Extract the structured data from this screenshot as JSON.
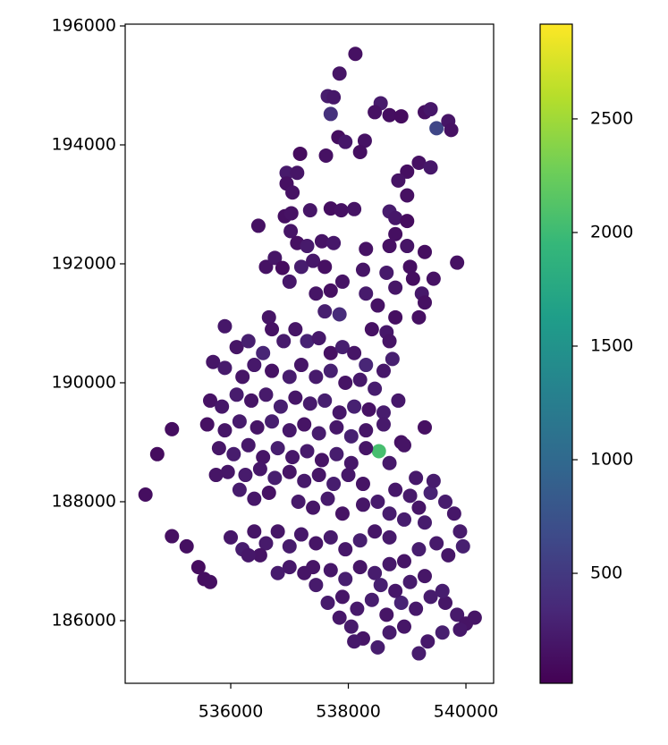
{
  "chart_data": {
    "type": "scatter",
    "colormap": "viridis",
    "marker_size": 8,
    "xlim": [
      534205,
      540471
    ],
    "ylim": [
      184947,
      196030
    ],
    "xticks": [
      536000,
      538000,
      540000
    ],
    "yticks": [
      186000,
      188000,
      190000,
      192000,
      194000,
      196000
    ],
    "clim": [
      16,
      2917
    ],
    "cticks": [
      500,
      1000,
      1500,
      2000,
      2500
    ],
    "x": [
      538120,
      537850,
      537650,
      537750,
      537700,
      538550,
      538450,
      538700,
      538900,
      539300,
      539400,
      539500,
      539700,
      539750,
      537830,
      537950,
      538280,
      538200,
      537180,
      537620,
      536950,
      537130,
      536950,
      537050,
      539000,
      539200,
      539400,
      538850,
      539000,
      537350,
      537700,
      537880,
      538100,
      538700,
      538800,
      536920,
      537030,
      539000,
      536470,
      537020,
      537130,
      537300,
      537550,
      537750,
      538300,
      538800,
      539000,
      538700,
      539300,
      536600,
      536750,
      536880,
      537200,
      537400,
      537600,
      538250,
      538650,
      539050,
      539100,
      539450,
      539850,
      537000,
      537450,
      537700,
      537900,
      538300,
      538500,
      538800,
      539250,
      539300,
      538800,
      536650,
      537600,
      537850,
      538650,
      538400,
      538700,
      539200,
      535000,
      534750,
      534550,
      535000,
      535250,
      535450,
      535550,
      535650,
      538520,
      535900,
      536100,
      536300,
      536550,
      536700,
      536900,
      537100,
      537300,
      537500,
      537700,
      537900,
      538100,
      538300,
      538600,
      538750,
      535700,
      535900,
      536200,
      536400,
      536700,
      537000,
      537200,
      537450,
      537700,
      537950,
      538200,
      538450,
      535650,
      535850,
      536100,
      536350,
      536600,
      536850,
      537100,
      537350,
      537600,
      537850,
      538100,
      538350,
      538600,
      538850,
      535600,
      535900,
      536150,
      536450,
      536700,
      537000,
      537250,
      537500,
      537800,
      538050,
      538300,
      538600,
      538900,
      539300,
      535800,
      536050,
      536300,
      536550,
      536800,
      537050,
      537300,
      537550,
      537800,
      538050,
      538300,
      538700,
      538950,
      535950,
      536250,
      536500,
      536750,
      537000,
      537250,
      537500,
      537750,
      538000,
      538250,
      535750,
      536150,
      536400,
      536650,
      537150,
      537400,
      537650,
      537900,
      536000,
      536200,
      536400,
      536600,
      536800,
      537000,
      537200,
      537450,
      537700,
      537950,
      538200,
      538450,
      538700,
      538950,
      539200,
      539400,
      539650,
      539800,
      539900,
      539950,
      539700,
      539500,
      539200,
      538950,
      538700,
      538450,
      538200,
      537950,
      537700,
      537450,
      537250,
      537000,
      536800,
      536500,
      536300,
      537650,
      537900,
      538150,
      538400,
      538650,
      538900,
      539150,
      539400,
      539650,
      539850,
      540000,
      539900,
      540150,
      539600,
      539350,
      539200,
      538950,
      538700,
      538500,
      538250,
      538050,
      537850,
      538100,
      539600,
      539300,
      539050,
      538800,
      538550,
      537400,
      539050,
      539300,
      538800,
      538500,
      538250,
      538700,
      539150,
      539450
    ],
    "values": [
      195530,
      195200,
      194820,
      194800,
      194520,
      194700,
      194550,
      194500,
      194480,
      194550,
      194600,
      194280,
      194400,
      194250,
      194130,
      194050,
      194070,
      193880,
      193850,
      193820,
      193530,
      193530,
      193350,
      193200,
      193550,
      193700,
      193620,
      193400,
      193150,
      192900,
      192930,
      192900,
      192920,
      192880,
      192770,
      192800,
      192850,
      192720,
      192640,
      192550,
      192350,
      192300,
      192380,
      192350,
      192250,
      192500,
      192300,
      192300,
      192200,
      191950,
      192100,
      191930,
      191950,
      192050,
      191950,
      191900,
      191850,
      191950,
      191750,
      191750,
      192020,
      191700,
      191500,
      191550,
      191700,
      191500,
      191300,
      191600,
      191500,
      191350,
      191100,
      191100,
      191200,
      191150,
      190850,
      190900,
      190700,
      191100,
      189220,
      188800,
      188120,
      187420,
      187250,
      186900,
      186700,
      186650,
      188850,
      190950,
      190600,
      190700,
      190500,
      190900,
      190700,
      190900,
      190700,
      190750,
      190500,
      190600,
      190500,
      190300,
      190200,
      190400,
      190350,
      190250,
      190100,
      190300,
      190200,
      190100,
      190300,
      190100,
      190200,
      190000,
      190050,
      189900,
      189700,
      189600,
      189800,
      189700,
      189800,
      189600,
      189750,
      189650,
      189700,
      189500,
      189600,
      189550,
      189500,
      189700,
      189300,
      189200,
      189350,
      189250,
      189350,
      189200,
      189300,
      189150,
      189250,
      189100,
      189200,
      189300,
      189000,
      189250,
      188900,
      188800,
      188950,
      188750,
      188900,
      188750,
      188850,
      188700,
      188800,
      188650,
      188900,
      188650,
      188950,
      188500,
      188450,
      188550,
      188400,
      188500,
      188350,
      188450,
      188300,
      188450,
      188300,
      188450,
      188200,
      188050,
      188150,
      188000,
      187900,
      188050,
      187800,
      187400,
      187200,
      187500,
      187300,
      187500,
      187250,
      187450,
      187300,
      187400,
      187200,
      187350,
      187500,
      187400,
      187700,
      187900,
      188150,
      188000,
      187800,
      187500,
      187250,
      187100,
      187300,
      187200,
      187000,
      186950,
      186800,
      186900,
      186700,
      186850,
      186600,
      186800,
      186900,
      186800,
      187100,
      187100,
      186300,
      186400,
      186200,
      186350,
      186100,
      186300,
      186200,
      186400,
      186300,
      186100,
      185950,
      185850,
      186050,
      185800,
      185650,
      185450,
      185900,
      185800,
      185550,
      185700,
      185900,
      186050,
      185650,
      186500,
      186750,
      186650,
      186500,
      186600,
      186900,
      188100,
      187650,
      188200,
      188000,
      187950,
      187800,
      188400,
      188350
    ],
    "color_values": [
      150,
      180,
      240,
      200,
      420,
      230,
      150,
      120,
      110,
      140,
      200,
      620,
      180,
      150,
      120,
      200,
      160,
      130,
      110,
      150,
      220,
      180,
      140,
      160,
      130,
      150,
      200,
      170,
      140,
      190,
      120,
      150,
      170,
      240,
      200,
      130,
      160,
      110,
      150,
      180,
      140,
      220,
      170,
      200,
      160,
      130,
      180,
      150,
      120,
      160,
      190,
      110,
      250,
      200,
      140,
      180,
      220,
      130,
      120,
      160,
      150,
      200,
      180,
      140,
      170,
      230,
      160,
      190,
      210,
      140,
      130,
      180,
      260,
      380,
      200,
      150,
      170,
      140,
      120,
      110,
      120,
      140,
      130,
      110,
      120,
      130,
      2050,
      200,
      180,
      260,
      310,
      160,
      230,
      180,
      290,
      210,
      150,
      260,
      180,
      320,
      200,
      270,
      190,
      230,
      180,
      210,
      160,
      250,
      190,
      230,
      280,
      170,
      210,
      250,
      160,
      200,
      240,
      180,
      220,
      270,
      190,
      230,
      260,
      200,
      280,
      160,
      240,
      210,
      150,
      190,
      230,
      180,
      260,
      210,
      170,
      240,
      200,
      280,
      190,
      220,
      150,
      140,
      190,
      240,
      210,
      180,
      260,
      200,
      230,
      170,
      250,
      200,
      180,
      210,
      170,
      190,
      230,
      200,
      260,
      180,
      220,
      190,
      250,
      200,
      170,
      180,
      240,
      200,
      160,
      220,
      190,
      230,
      170,
      200,
      250,
      180,
      220,
      190,
      240,
      210,
      180,
      230,
      200,
      260,
      190,
      220,
      250,
      180,
      300,
      240,
      200,
      230,
      270,
      190,
      220,
      250,
      180,
      210,
      240,
      190,
      260,
      200,
      230,
      180,
      210,
      240,
      170,
      200,
      230,
      190,
      220,
      250,
      180,
      300,
      210,
      240,
      190,
      220,
      170,
      200,
      180,
      260,
      210,
      240,
      190,
      230,
      250,
      180,
      220,
      200,
      210,
      250,
      190,
      230,
      200,
      270,
      180,
      220,
      240,
      200,
      230,
      190,
      250,
      210,
      240
    ]
  }
}
